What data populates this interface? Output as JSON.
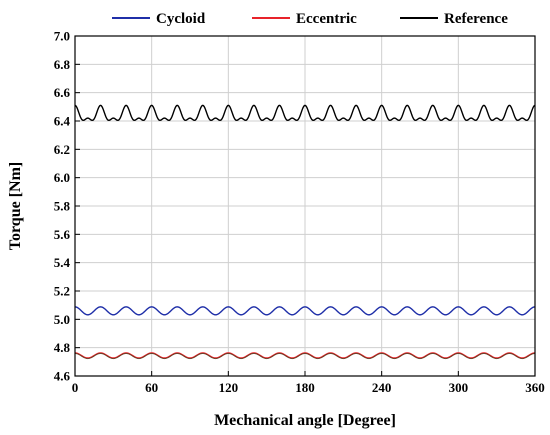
{
  "chart_data": {
    "type": "line",
    "xlabel": "Mechanical angle [Degree]",
    "ylabel": "Torque [Nm]",
    "xlim": [
      0,
      360
    ],
    "ylim": [
      4.6,
      7.0
    ],
    "x_ticks": [
      "0",
      "60",
      "120",
      "180",
      "240",
      "300",
      "360"
    ],
    "y_ticks": [
      "4.6",
      "4.8",
      "5.0",
      "5.2",
      "5.4",
      "5.6",
      "5.8",
      "6.0",
      "6.2",
      "6.4",
      "6.6",
      "6.8",
      "7.0"
    ],
    "grid": true,
    "legend_position": "top",
    "series": [
      {
        "name": "Cycloid",
        "color": "#1f2fa8",
        "mean": 5.06,
        "amplitude": 0.028,
        "period_deg": 20,
        "shape": "sinusoid"
      },
      {
        "name": "Eccentric",
        "color": "#e8232a",
        "mean": 4.745,
        "amplitude": 0.018,
        "period_deg": 20,
        "shape": "sinusoid"
      },
      {
        "name": "Reference",
        "color": "#000000",
        "mean": 6.44,
        "amplitude": 0.06,
        "period_deg": 20,
        "shape": "double-peak"
      }
    ]
  }
}
